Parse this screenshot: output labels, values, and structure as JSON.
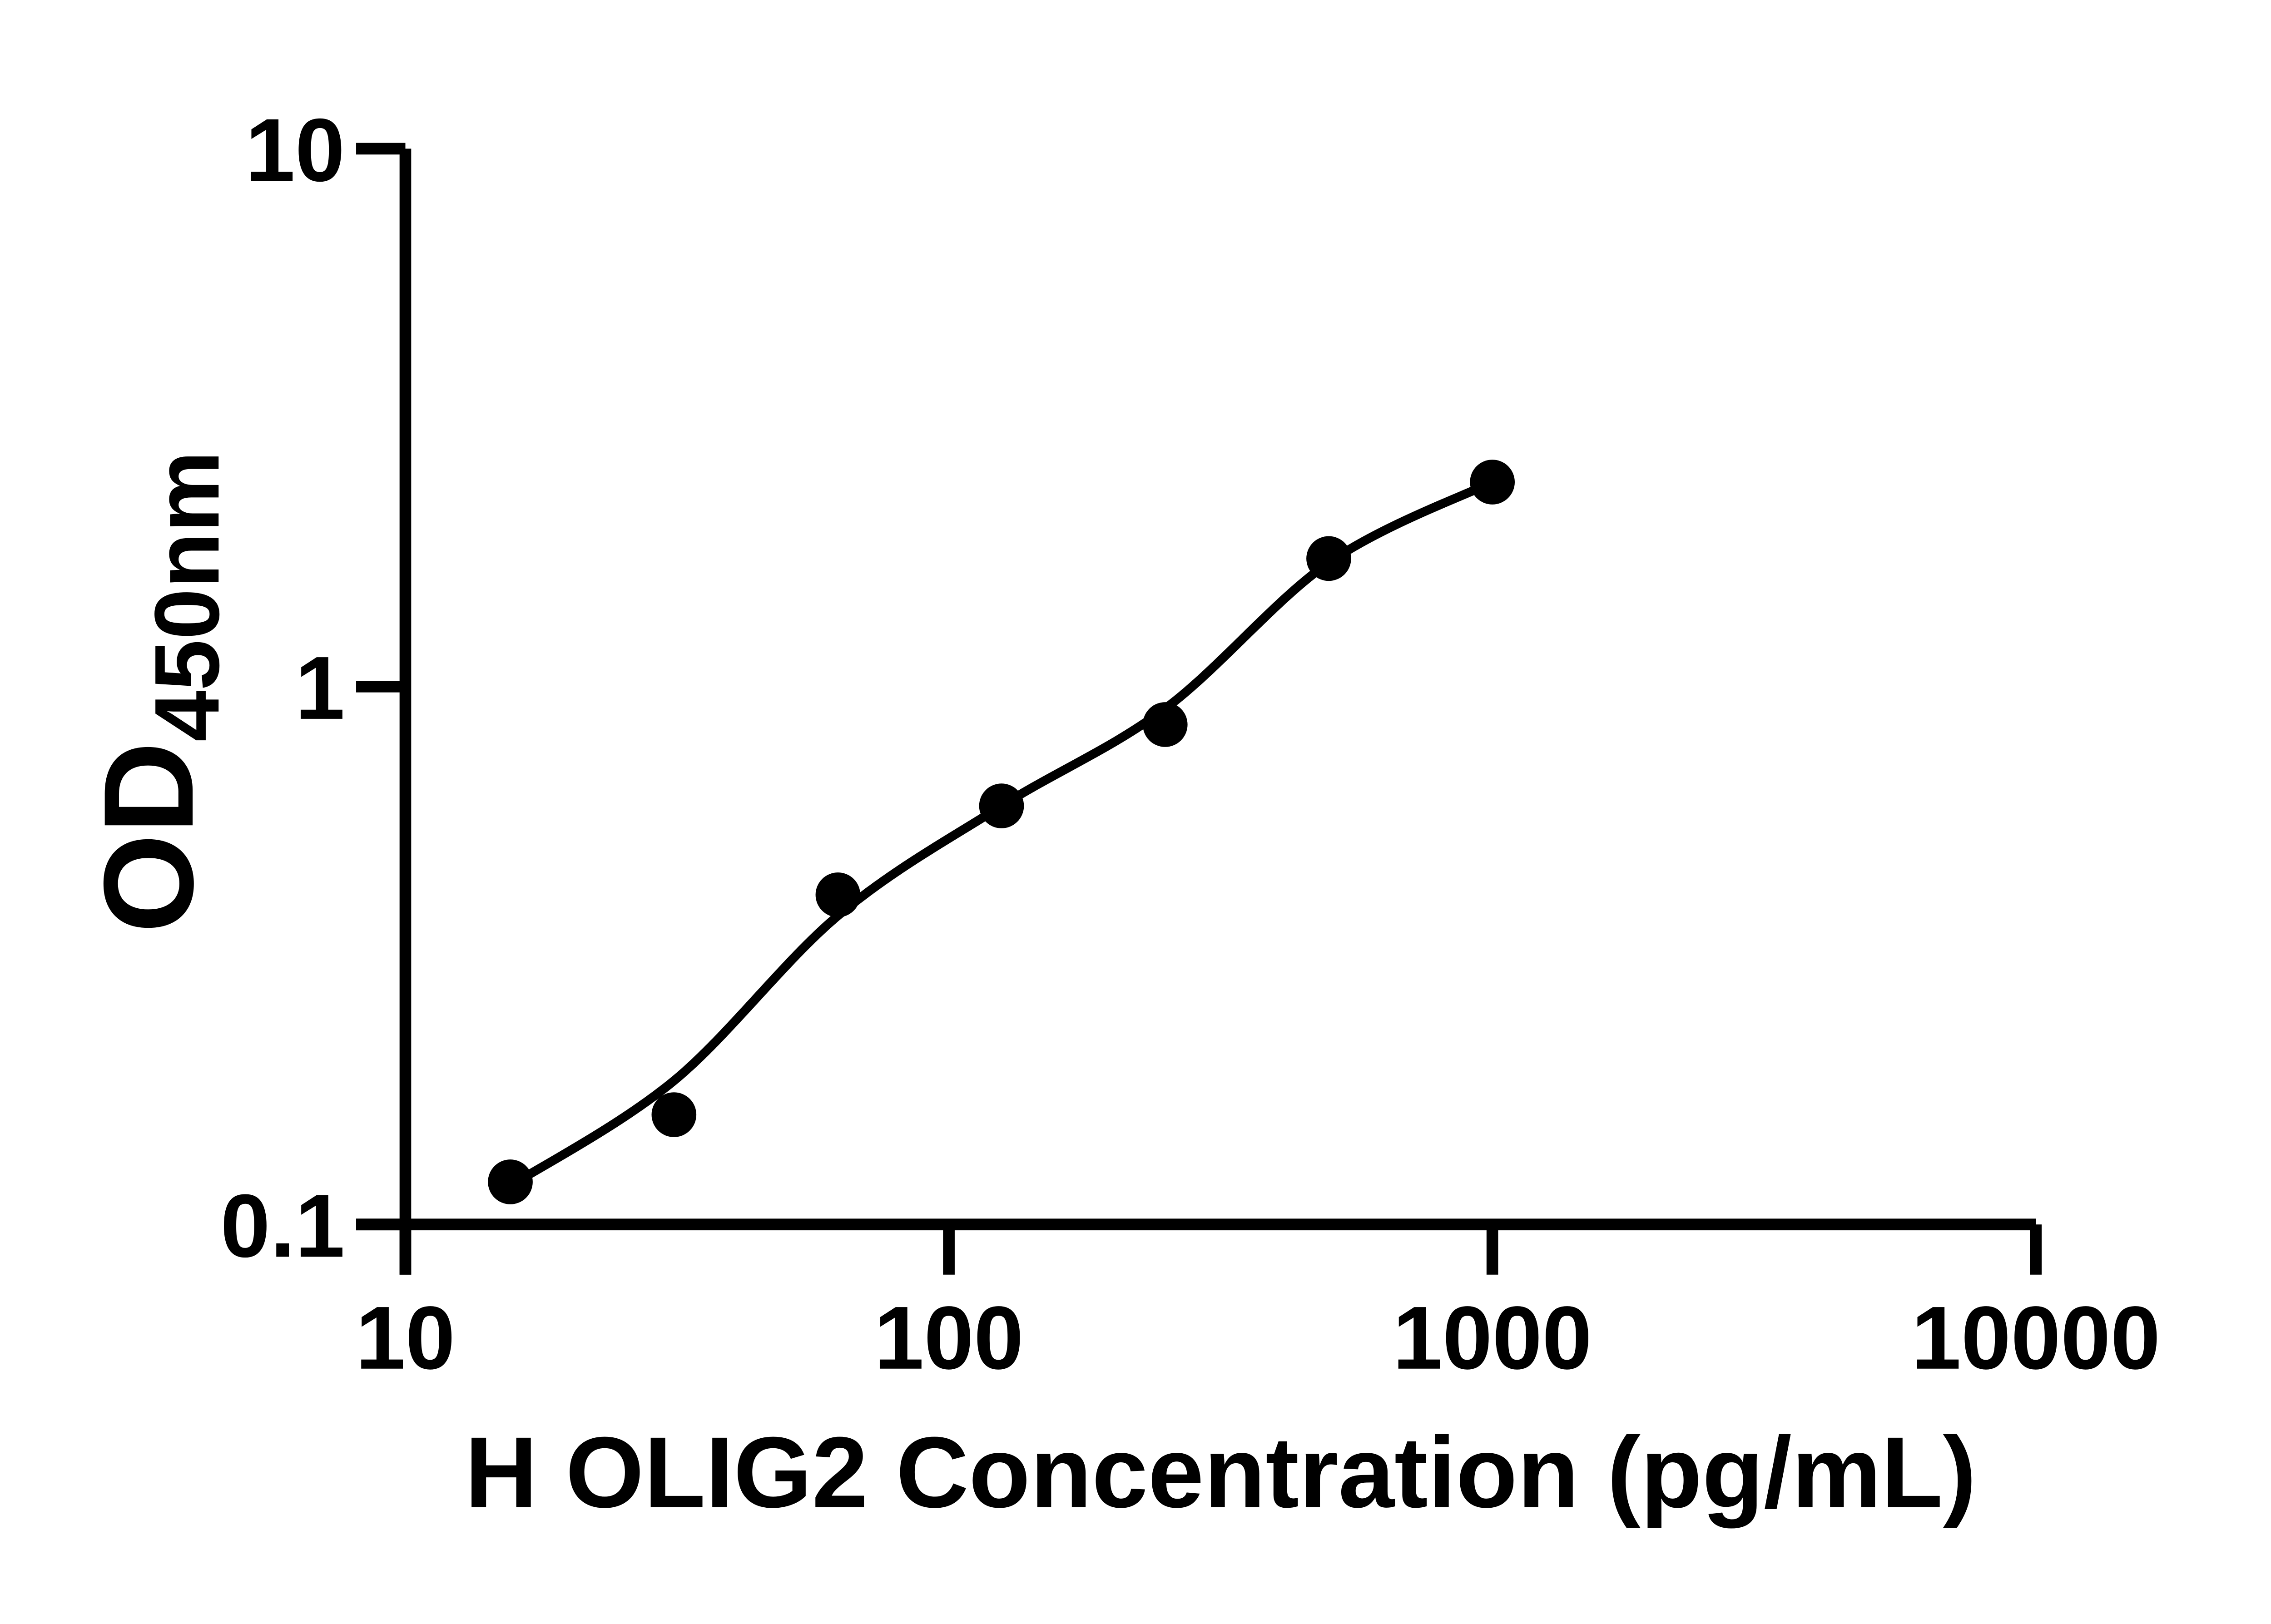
{
  "page": {
    "background_color": "#ffffff",
    "foreground_color": "#000000"
  },
  "chart_data": {
    "type": "scatter",
    "title": "",
    "xlabel": "H OLIG2 Concentration (pg/mL)",
    "ylabel_base": "OD",
    "ylabel_subscript": "450nm",
    "x_scale": "log",
    "y_scale": "log",
    "xlim": [
      10,
      10000
    ],
    "ylim": [
      0.1,
      10
    ],
    "grid": false,
    "legend": false,
    "x_ticks": [
      {
        "value": 10,
        "label": "10"
      },
      {
        "value": 100,
        "label": "100"
      },
      {
        "value": 1000,
        "label": "1000"
      },
      {
        "value": 10000,
        "label": "10000"
      }
    ],
    "y_ticks": [
      {
        "value": 10,
        "label": "10"
      },
      {
        "value": 1,
        "label": "1"
      },
      {
        "value": 0.1,
        "label": "0.1"
      }
    ],
    "series": [
      {
        "name": "standard-curve-points",
        "marker": {
          "shape": "circle",
          "color": "#000000",
          "radius_px": 50
        },
        "points": [
          {
            "x": 15.6,
            "y": 0.12
          },
          {
            "x": 31.2,
            "y": 0.16
          },
          {
            "x": 62.5,
            "y": 0.41
          },
          {
            "x": 125,
            "y": 0.6
          },
          {
            "x": 250,
            "y": 0.85
          },
          {
            "x": 500,
            "y": 1.73
          },
          {
            "x": 1000,
            "y": 2.4
          }
        ]
      }
    ],
    "fit_curve": {
      "name": "four-parameter-logistic-fit",
      "color": "#000000",
      "samples": [
        {
          "x": 15.6,
          "y": 0.118
        },
        {
          "x": 31.2,
          "y": 0.185
        },
        {
          "x": 62.5,
          "y": 0.375
        },
        {
          "x": 125,
          "y": 0.6
        },
        {
          "x": 250,
          "y": 0.91
        },
        {
          "x": 500,
          "y": 1.7
        },
        {
          "x": 1000,
          "y": 2.4
        }
      ]
    },
    "axis_color": "#000000"
  }
}
